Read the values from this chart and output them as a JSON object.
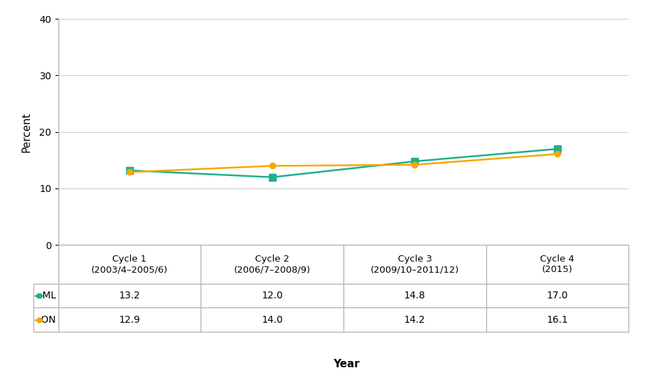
{
  "x_positions": [
    1,
    2,
    3,
    4
  ],
  "series": [
    {
      "label": "ML",
      "values": [
        13.2,
        12.0,
        14.8,
        17.0
      ],
      "color": "#1DAF8E",
      "marker": "s",
      "linewidth": 1.8,
      "markersize": 7
    },
    {
      "label": "ON",
      "values": [
        12.9,
        14.0,
        14.2,
        16.1
      ],
      "color": "#F5A800",
      "marker": "o",
      "linewidth": 1.8,
      "markersize": 6
    }
  ],
  "ylabel": "Percent",
  "xlabel": "Year",
  "ylim": [
    0,
    40
  ],
  "yticks": [
    0,
    10,
    20,
    30,
    40
  ],
  "table_col_labels": [
    "Cycle 1\n(2003/4–2005/6)",
    "Cycle 2\n(2006/7–2008/9)",
    "Cycle 3\n(2009/10–2011/12)",
    "Cycle 4\n(2015)"
  ],
  "table_row_labels": [
    "ML",
    "ON"
  ],
  "table_values": [
    [
      "13.2",
      "12.0",
      "14.8",
      "17.0"
    ],
    [
      "12.9",
      "14.0",
      "14.2",
      "16.1"
    ]
  ],
  "background_color": "#ffffff",
  "grid_color": "#cccccc",
  "tick_label_fontsize": 10,
  "axis_label_fontsize": 11,
  "table_fontsize": 10
}
